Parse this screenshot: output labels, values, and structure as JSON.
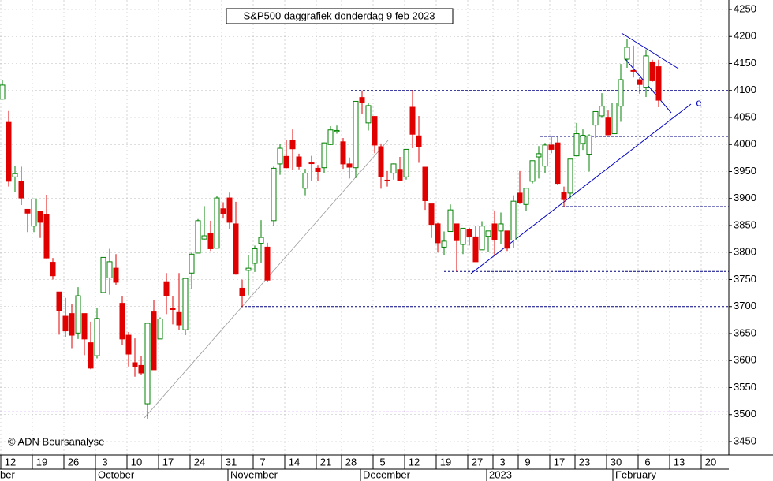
{
  "chart_data": {
    "type": "candlestick",
    "title": "S&P500 daggrafiek donderdag 9 feb 2023",
    "credit": "© ADN Beursanalyse",
    "annotation": "e",
    "categories": [
      "12",
      null,
      null,
      null,
      null,
      "19",
      null,
      null,
      null,
      null,
      "26",
      null,
      null,
      null,
      null,
      "3",
      null,
      null,
      null,
      null,
      "10",
      null,
      null,
      null,
      null,
      "17",
      null,
      null,
      null,
      null,
      "24",
      null,
      null,
      null,
      null,
      "31",
      null,
      null,
      null,
      null,
      "7",
      null,
      null,
      null,
      null,
      "14",
      null,
      null,
      null,
      null,
      "21",
      null,
      null,
      null,
      "28",
      null,
      null,
      null,
      null,
      "5",
      null,
      null,
      null,
      null,
      "12",
      null,
      null,
      null,
      null,
      "19",
      null,
      null,
      null,
      null,
      "27",
      null,
      null,
      null,
      "3",
      null,
      null,
      null,
      "9",
      null,
      null,
      null,
      null,
      "17",
      null,
      null,
      null,
      "23",
      null,
      null,
      null,
      null,
      "30",
      null,
      null,
      null,
      null,
      "6",
      null,
      null,
      null,
      null,
      "13",
      null,
      null,
      null,
      null,
      "20"
    ],
    "months": [
      "ber",
      null,
      null,
      null,
      null,
      null,
      null,
      null,
      null,
      null,
      null,
      null,
      null,
      null,
      null,
      "October",
      null,
      null,
      null,
      null,
      null,
      null,
      null,
      null,
      null,
      null,
      null,
      null,
      null,
      null,
      null,
      null,
      null,
      null,
      null,
      null,
      "November",
      null,
      null,
      null,
      null,
      null,
      null,
      null,
      null,
      null,
      null,
      null,
      null,
      null,
      null,
      null,
      null,
      null,
      null,
      null,
      null,
      "December",
      null,
      null,
      null,
      null,
      null,
      null,
      null,
      null,
      null,
      null,
      null,
      null,
      null,
      null,
      null,
      null,
      null,
      null,
      null,
      "2023",
      null,
      null,
      null,
      null,
      null,
      null,
      null,
      null,
      null,
      null,
      null,
      null,
      null,
      null,
      null,
      null,
      null,
      null,
      null,
      "February",
      null,
      null,
      null,
      null,
      null,
      null,
      null,
      null,
      null,
      null,
      null,
      null,
      null
    ],
    "open": [
      4084,
      4041,
      3940,
      3932,
      3880,
      3849,
      3876,
      3871,
      3782,
      3727,
      3682,
      3687,
      3651,
      3687,
      3633,
      3609,
      3726,
      3753,
      3771,
      3706,
      3647,
      3596,
      3591,
      3520,
      3690,
      3640,
      3746,
      3696,
      3689,
      3657,
      3762,
      3799,
      3825,
      3835,
      3808,
      3881,
      3901,
      3853,
      3734,
      3767,
      3780,
      3817,
      3810,
      3859,
      3964,
      3978,
      4007,
      3977,
      3919,
      3966,
      3956,
      3957,
      4000,
      4024,
      4005,
      3964,
      3957,
      4087,
      4040,
      4052,
      3996,
      3934,
      3947,
      3954,
      3940,
      4069,
      4016,
      3958,
      3890,
      3853,
      3810,
      3839,
      3853,
      3815,
      3843,
      3829,
      3805,
      3830,
      3853,
      3840,
      3840,
      3823,
      3910,
      3889,
      3932,
      3977,
      3960,
      3999,
      4003,
      3912,
      3910,
      3979,
      4002,
      3982,
      4036,
      4053,
      4049,
      4020,
      4071,
      4158,
      4137,
      4120,
      4106,
      4153,
      4144,
      null,
      null,
      null,
      null,
      null,
      null,
      null
    ],
    "high": [
      4119,
      4062,
      3961,
      3959,
      3880,
      3900,
      3876,
      3907,
      3790,
      3727,
      3716,
      3705,
      3736,
      3687,
      3672,
      3698,
      3791,
      3807,
      3797,
      3720,
      3653,
      3641,
      3608,
      3670,
      3712,
      3680,
      3762,
      3719,
      3762,
      3753,
      3800,
      3862,
      3886,
      3859,
      3905,
      3893,
      3911,
      3894,
      3750,
      3796,
      3813,
      3860,
      3818,
      3959,
      4001,
      4009,
      4028,
      3983,
      3955,
      3979,
      3962,
      4004,
      4034,
      4035,
      4012,
      3976,
      4080,
      4100,
      4077,
      4053,
      4002,
      3951,
      3965,
      3977,
      3991,
      4101,
      4053,
      3958,
      3890,
      3855,
      3839,
      3889,
      3853,
      3845,
      3846,
      3849,
      3858,
      3840,
      3878,
      3874,
      3840,
      3906,
      3951,
      3919,
      3970,
      3997,
      4003,
      4015,
      4014,
      3922,
      3973,
      4040,
      4028,
      4019,
      4061,
      4095,
      4063,
      4077,
      4149,
      4195,
      4183,
      4124,
      4176,
      4157,
      4157,
      null,
      null,
      null,
      null,
      null,
      null,
      null
    ],
    "low": [
      4083,
      3922,
      3912,
      3888,
      3838,
      3838,
      3827,
      3789,
      3750,
      3648,
      3644,
      3623,
      3640,
      3610,
      3584,
      3604,
      3726,
      3722,
      3739,
      3629,
      3589,
      3570,
      3573,
      3492,
      3583,
      3640,
      3686,
      3667,
      3657,
      3647,
      3733,
      3799,
      3824,
      3803,
      3808,
      3863,
      3843,
      3759,
      3699,
      3721,
      3764,
      3781,
      3745,
      3850,
      3944,
      3956,
      3953,
      3954,
      3906,
      3933,
      3933,
      3947,
      3999,
      4020,
      3955,
      3937,
      3938,
      4057,
      4026,
      3984,
      3918,
      3922,
      3935,
      3933,
      3935,
      3993,
      3966,
      3879,
      3827,
      3800,
      3795,
      3839,
      3765,
      3797,
      3813,
      3783,
      3805,
      3801,
      3795,
      3815,
      3803,
      3809,
      3890,
      3877,
      3928,
      3937,
      3947,
      3984,
      3926,
      3885,
      3900,
      3978,
      3990,
      3950,
      4012,
      4049,
      4017,
      4020,
      4042,
      4142,
      4124,
      4094,
      4088,
      4116,
      4069,
      null,
      null,
      null,
      null,
      null,
      null,
      null
    ],
    "close": [
      4110,
      3932,
      3946,
      3901,
      3873,
      3899,
      3856,
      3790,
      3757,
      3693,
      3655,
      3647,
      3720,
      3640,
      3586,
      3678,
      3791,
      3783,
      3745,
      3640,
      3612,
      3589,
      3577,
      3669,
      3583,
      3677,
      3720,
      3695,
      3666,
      3752,
      3797,
      3859,
      3831,
      3807,
      3901,
      3872,
      3856,
      3760,
      3720,
      3771,
      3807,
      3828,
      3749,
      3956,
      3993,
      3957,
      3992,
      3959,
      3947,
      3965,
      3950,
      4003,
      4027,
      4026,
      3964,
      3958,
      4080,
      4077,
      4072,
      3999,
      3941,
      3933,
      3964,
      3934,
      3991,
      4019,
      3996,
      3896,
      3852,
      3818,
      3821,
      3879,
      3822,
      3845,
      3829,
      3783,
      3849,
      3840,
      3824,
      3853,
      3808,
      3895,
      3893,
      3919,
      3970,
      3983,
      3999,
      3991,
      3928,
      3898,
      3973,
      4020,
      4017,
      4016,
      4061,
      4071,
      4018,
      4077,
      4120,
      4180,
      4136,
      4111,
      4164,
      4118,
      4082,
      null,
      null,
      null,
      null,
      null,
      null,
      null
    ],
    "up_color": "#008000",
    "down_color": "#e00000",
    "levels": [
      4100,
      4015,
      3885,
      3765,
      3700,
      3505
    ],
    "level_colors": [
      "#000080",
      "#000080",
      "#000080",
      "#000080",
      "#000080",
      "#a020f0"
    ],
    "ylim": [
      3450,
      4250
    ],
    "yticks": [
      3450,
      3500,
      3550,
      3600,
      3650,
      3700,
      3750,
      3800,
      3850,
      3900,
      3950,
      4000,
      4050,
      4100,
      4150,
      4200,
      4250
    ],
    "grid": true
  }
}
